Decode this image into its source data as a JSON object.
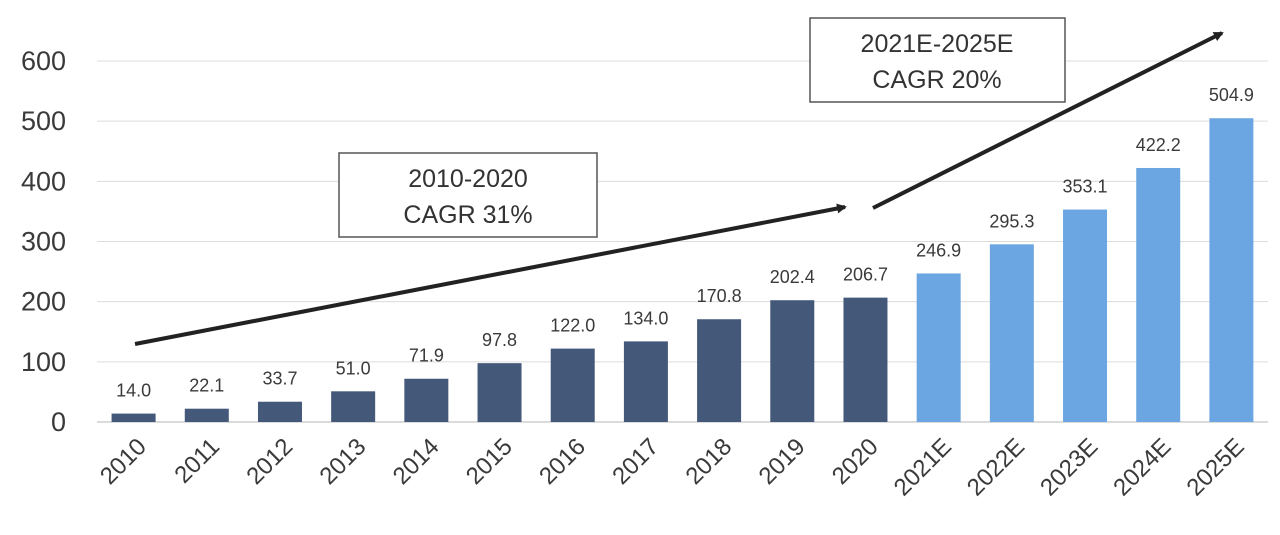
{
  "chart_data": {
    "type": "bar",
    "categories": [
      "2010",
      "2011",
      "2012",
      "2013",
      "2014",
      "2015",
      "2016",
      "2017",
      "2018",
      "2019",
      "2020",
      "2021E",
      "2022E",
      "2023E",
      "2024E",
      "2025E"
    ],
    "values": [
      14.0,
      22.1,
      33.7,
      51.0,
      71.9,
      97.8,
      122.0,
      134.0,
      170.8,
      202.4,
      206.7,
      246.9,
      295.3,
      353.1,
      422.2,
      504.9
    ],
    "value_labels": [
      "14.0",
      "22.1",
      "33.7",
      "51.0",
      "71.9",
      "97.8",
      "122.0",
      "134.0",
      "170.8",
      "202.4",
      "206.7",
      "246.9",
      "295.3",
      "353.1",
      "422.2",
      "504.9"
    ],
    "yticks": [
      "0",
      "100",
      "200",
      "300",
      "400",
      "500",
      "600"
    ],
    "ylim": [
      0,
      600
    ],
    "grid": true,
    "colors": {
      "actual": "#44587a",
      "forecast": "#6ca6e2"
    },
    "annotations": [
      {
        "line1": "2010-2020",
        "line2": "CAGR 31%"
      },
      {
        "line1": "2021E-2025E",
        "line2": "CAGR 20%"
      }
    ]
  }
}
